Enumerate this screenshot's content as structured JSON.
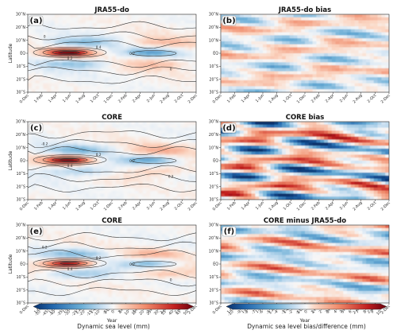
{
  "chart_data": [
    {
      "type": "heatmap",
      "panel": "a",
      "title": "JRA55-do",
      "ylabel": "Latitude",
      "y_ticks": [
        "30˚N",
        "20˚N",
        "10˚N",
        "EQ",
        "10˚S",
        "20˚S",
        "30˚S"
      ],
      "x_ticks": [
        "0-Dec",
        "1-Feb",
        "1-Apr",
        "1-Jun",
        "1-Aug",
        "1-Oct",
        "1-Dec",
        "2-Feb",
        "2-Apr",
        "2-Jun",
        "2-Aug",
        "2-Oct",
        "2-Dec"
      ],
      "contour_labels": [
        "0.4",
        "0.2",
        "0.2",
        "0",
        "0"
      ],
      "colorbar": "sea_level"
    },
    {
      "type": "heatmap",
      "panel": "b",
      "title": "JRA55-do bias",
      "y_ticks": [
        "30˚N",
        "20˚N",
        "10˚N",
        "EQ",
        "10˚S",
        "20˚S",
        "30˚S"
      ],
      "x_ticks": [
        "0-Dec",
        "1-Feb",
        "1-Apr",
        "1-Jun",
        "1-Aug",
        "1-Oct",
        "1-Dec",
        "2-Feb",
        "2-Apr",
        "2-Jun",
        "2-Aug",
        "2-Oct",
        "2-Dec"
      ],
      "colorbar": "bias"
    },
    {
      "type": "heatmap",
      "panel": "c",
      "title": "CORE",
      "ylabel": "Latitude",
      "y_ticks": [
        "30˚N",
        "20˚N",
        "10˚N",
        "EQ",
        "10˚S",
        "20˚S",
        "30˚S"
      ],
      "x_ticks": [
        "0-Dec",
        "1-Feb",
        "1-Apr",
        "1-Jun",
        "1-Aug",
        "1-Oct",
        "1-Dec",
        "2-Feb",
        "2-Apr",
        "2-Jun",
        "2-Aug",
        "2-Oct",
        "2-Dec"
      ],
      "contour_labels": [
        "0.2",
        "0.4",
        "0.2",
        "-0.2",
        "0.2"
      ],
      "colorbar": "sea_level"
    },
    {
      "type": "heatmap",
      "panel": "d",
      "title": "CORE bias",
      "y_ticks": [
        "30˚N",
        "20˚N",
        "10˚N",
        "EQ",
        "10˚S",
        "20˚S",
        "30˚S"
      ],
      "x_ticks": [
        "0-Dec",
        "1-Feb",
        "1-Apr",
        "1-Jun",
        "1-Aug",
        "1-Oct",
        "1-Dec",
        "2-Feb",
        "2-Apr",
        "2-Jun",
        "2-Aug",
        "2-Oct",
        "2-Dec"
      ],
      "colorbar": "bias"
    },
    {
      "type": "heatmap",
      "panel": "e",
      "title": "CORE",
      "ylabel": "Latitude",
      "xlabel": "Year",
      "y_ticks": [
        "30˚N",
        "20˚N",
        "10˚N",
        "EQ",
        "10˚S",
        "20˚S",
        "30˚S"
      ],
      "x_ticks": [
        "0-Dec",
        "1-Feb",
        "1-Apr",
        "1-Jun",
        "1-Aug",
        "1-Oct",
        "1-Dec",
        "2-Feb",
        "2-Apr",
        "2-Jun",
        "2-Aug",
        "2-Oct",
        "2-Dec"
      ],
      "contour_labels": [
        "0.2",
        "0.4",
        "0.2",
        "0.2",
        "0"
      ],
      "colorbar": "sea_level"
    },
    {
      "type": "heatmap",
      "panel": "f",
      "title": "CORE minus JRA55-do",
      "xlabel": "Year",
      "y_ticks": [
        "30˚N",
        "20˚N",
        "10˚N",
        "EQ",
        "10˚S",
        "20˚S",
        "30˚S"
      ],
      "x_ticks": [
        "0-Dec",
        "1-Feb",
        "1-Apr",
        "1-Jun",
        "1-Aug",
        "1-Oct",
        "1-Dec",
        "2-Feb",
        "2-Apr",
        "2-Jun",
        "2-Aug",
        "2-Oct",
        "2-Dec"
      ],
      "colorbar": "bias"
    }
  ],
  "colorbars": {
    "sea_level": {
      "label": "Dynamic sea level (mm)",
      "ticks": [
        "-50",
        "-45",
        "-40",
        "-35",
        "-30",
        "-25",
        "-20",
        "-15",
        "-10",
        "-5",
        "0",
        "5",
        "10",
        "15",
        "20",
        "25",
        "30",
        "35",
        "40",
        "45",
        "50"
      ],
      "range": [
        -50,
        50
      ]
    },
    "bias": {
      "label": "Dynamic sea level bias/difference (mm)",
      "ticks": [
        "-10",
        "-9",
        "-8",
        "-7",
        "-6",
        "-5",
        "-4",
        "-3",
        "-2",
        "-1",
        "0",
        "1",
        "2",
        "3",
        "4",
        "5",
        "6",
        "7",
        "8",
        "9",
        "10"
      ],
      "range": [
        -10,
        10
      ]
    }
  },
  "colors": {
    "negative_max": "#08306b",
    "negative": "#2c7bb6",
    "neutral": "#f7f7f7",
    "positive": "#d7301f",
    "positive_max": "#67000d",
    "contour": "#333333"
  }
}
